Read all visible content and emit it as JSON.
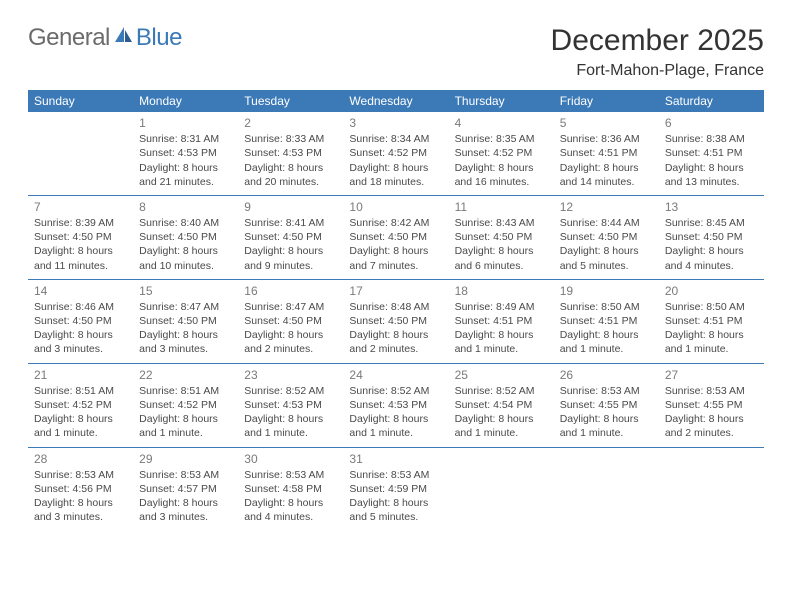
{
  "brand": {
    "part1": "General",
    "part2": "Blue"
  },
  "title": "December 2025",
  "location": "Fort-Mahon-Plage, France",
  "colors": {
    "header_bg": "#3b79b7",
    "header_text": "#ffffff",
    "rule": "#3b79b7",
    "body_text": "#4a4a4a",
    "daynum": "#7a7a7a",
    "logo_gray": "#6b6b6b",
    "logo_blue": "#3b79b7"
  },
  "weekdays": [
    "Sunday",
    "Monday",
    "Tuesday",
    "Wednesday",
    "Thursday",
    "Friday",
    "Saturday"
  ],
  "weeks": [
    [
      null,
      {
        "n": "1",
        "sr": "Sunrise: 8:31 AM",
        "ss": "Sunset: 4:53 PM",
        "d1": "Daylight: 8 hours",
        "d2": "and 21 minutes."
      },
      {
        "n": "2",
        "sr": "Sunrise: 8:33 AM",
        "ss": "Sunset: 4:53 PM",
        "d1": "Daylight: 8 hours",
        "d2": "and 20 minutes."
      },
      {
        "n": "3",
        "sr": "Sunrise: 8:34 AM",
        "ss": "Sunset: 4:52 PM",
        "d1": "Daylight: 8 hours",
        "d2": "and 18 minutes."
      },
      {
        "n": "4",
        "sr": "Sunrise: 8:35 AM",
        "ss": "Sunset: 4:52 PM",
        "d1": "Daylight: 8 hours",
        "d2": "and 16 minutes."
      },
      {
        "n": "5",
        "sr": "Sunrise: 8:36 AM",
        "ss": "Sunset: 4:51 PM",
        "d1": "Daylight: 8 hours",
        "d2": "and 14 minutes."
      },
      {
        "n": "6",
        "sr": "Sunrise: 8:38 AM",
        "ss": "Sunset: 4:51 PM",
        "d1": "Daylight: 8 hours",
        "d2": "and 13 minutes."
      }
    ],
    [
      {
        "n": "7",
        "sr": "Sunrise: 8:39 AM",
        "ss": "Sunset: 4:50 PM",
        "d1": "Daylight: 8 hours",
        "d2": "and 11 minutes."
      },
      {
        "n": "8",
        "sr": "Sunrise: 8:40 AM",
        "ss": "Sunset: 4:50 PM",
        "d1": "Daylight: 8 hours",
        "d2": "and 10 minutes."
      },
      {
        "n": "9",
        "sr": "Sunrise: 8:41 AM",
        "ss": "Sunset: 4:50 PM",
        "d1": "Daylight: 8 hours",
        "d2": "and 9 minutes."
      },
      {
        "n": "10",
        "sr": "Sunrise: 8:42 AM",
        "ss": "Sunset: 4:50 PM",
        "d1": "Daylight: 8 hours",
        "d2": "and 7 minutes."
      },
      {
        "n": "11",
        "sr": "Sunrise: 8:43 AM",
        "ss": "Sunset: 4:50 PM",
        "d1": "Daylight: 8 hours",
        "d2": "and 6 minutes."
      },
      {
        "n": "12",
        "sr": "Sunrise: 8:44 AM",
        "ss": "Sunset: 4:50 PM",
        "d1": "Daylight: 8 hours",
        "d2": "and 5 minutes."
      },
      {
        "n": "13",
        "sr": "Sunrise: 8:45 AM",
        "ss": "Sunset: 4:50 PM",
        "d1": "Daylight: 8 hours",
        "d2": "and 4 minutes."
      }
    ],
    [
      {
        "n": "14",
        "sr": "Sunrise: 8:46 AM",
        "ss": "Sunset: 4:50 PM",
        "d1": "Daylight: 8 hours",
        "d2": "and 3 minutes."
      },
      {
        "n": "15",
        "sr": "Sunrise: 8:47 AM",
        "ss": "Sunset: 4:50 PM",
        "d1": "Daylight: 8 hours",
        "d2": "and 3 minutes."
      },
      {
        "n": "16",
        "sr": "Sunrise: 8:47 AM",
        "ss": "Sunset: 4:50 PM",
        "d1": "Daylight: 8 hours",
        "d2": "and 2 minutes."
      },
      {
        "n": "17",
        "sr": "Sunrise: 8:48 AM",
        "ss": "Sunset: 4:50 PM",
        "d1": "Daylight: 8 hours",
        "d2": "and 2 minutes."
      },
      {
        "n": "18",
        "sr": "Sunrise: 8:49 AM",
        "ss": "Sunset: 4:51 PM",
        "d1": "Daylight: 8 hours",
        "d2": "and 1 minute."
      },
      {
        "n": "19",
        "sr": "Sunrise: 8:50 AM",
        "ss": "Sunset: 4:51 PM",
        "d1": "Daylight: 8 hours",
        "d2": "and 1 minute."
      },
      {
        "n": "20",
        "sr": "Sunrise: 8:50 AM",
        "ss": "Sunset: 4:51 PM",
        "d1": "Daylight: 8 hours",
        "d2": "and 1 minute."
      }
    ],
    [
      {
        "n": "21",
        "sr": "Sunrise: 8:51 AM",
        "ss": "Sunset: 4:52 PM",
        "d1": "Daylight: 8 hours",
        "d2": "and 1 minute."
      },
      {
        "n": "22",
        "sr": "Sunrise: 8:51 AM",
        "ss": "Sunset: 4:52 PM",
        "d1": "Daylight: 8 hours",
        "d2": "and 1 minute."
      },
      {
        "n": "23",
        "sr": "Sunrise: 8:52 AM",
        "ss": "Sunset: 4:53 PM",
        "d1": "Daylight: 8 hours",
        "d2": "and 1 minute."
      },
      {
        "n": "24",
        "sr": "Sunrise: 8:52 AM",
        "ss": "Sunset: 4:53 PM",
        "d1": "Daylight: 8 hours",
        "d2": "and 1 minute."
      },
      {
        "n": "25",
        "sr": "Sunrise: 8:52 AM",
        "ss": "Sunset: 4:54 PM",
        "d1": "Daylight: 8 hours",
        "d2": "and 1 minute."
      },
      {
        "n": "26",
        "sr": "Sunrise: 8:53 AM",
        "ss": "Sunset: 4:55 PM",
        "d1": "Daylight: 8 hours",
        "d2": "and 1 minute."
      },
      {
        "n": "27",
        "sr": "Sunrise: 8:53 AM",
        "ss": "Sunset: 4:55 PM",
        "d1": "Daylight: 8 hours",
        "d2": "and 2 minutes."
      }
    ],
    [
      {
        "n": "28",
        "sr": "Sunrise: 8:53 AM",
        "ss": "Sunset: 4:56 PM",
        "d1": "Daylight: 8 hours",
        "d2": "and 3 minutes."
      },
      {
        "n": "29",
        "sr": "Sunrise: 8:53 AM",
        "ss": "Sunset: 4:57 PM",
        "d1": "Daylight: 8 hours",
        "d2": "and 3 minutes."
      },
      {
        "n": "30",
        "sr": "Sunrise: 8:53 AM",
        "ss": "Sunset: 4:58 PM",
        "d1": "Daylight: 8 hours",
        "d2": "and 4 minutes."
      },
      {
        "n": "31",
        "sr": "Sunrise: 8:53 AM",
        "ss": "Sunset: 4:59 PM",
        "d1": "Daylight: 8 hours",
        "d2": "and 5 minutes."
      },
      null,
      null,
      null
    ]
  ]
}
